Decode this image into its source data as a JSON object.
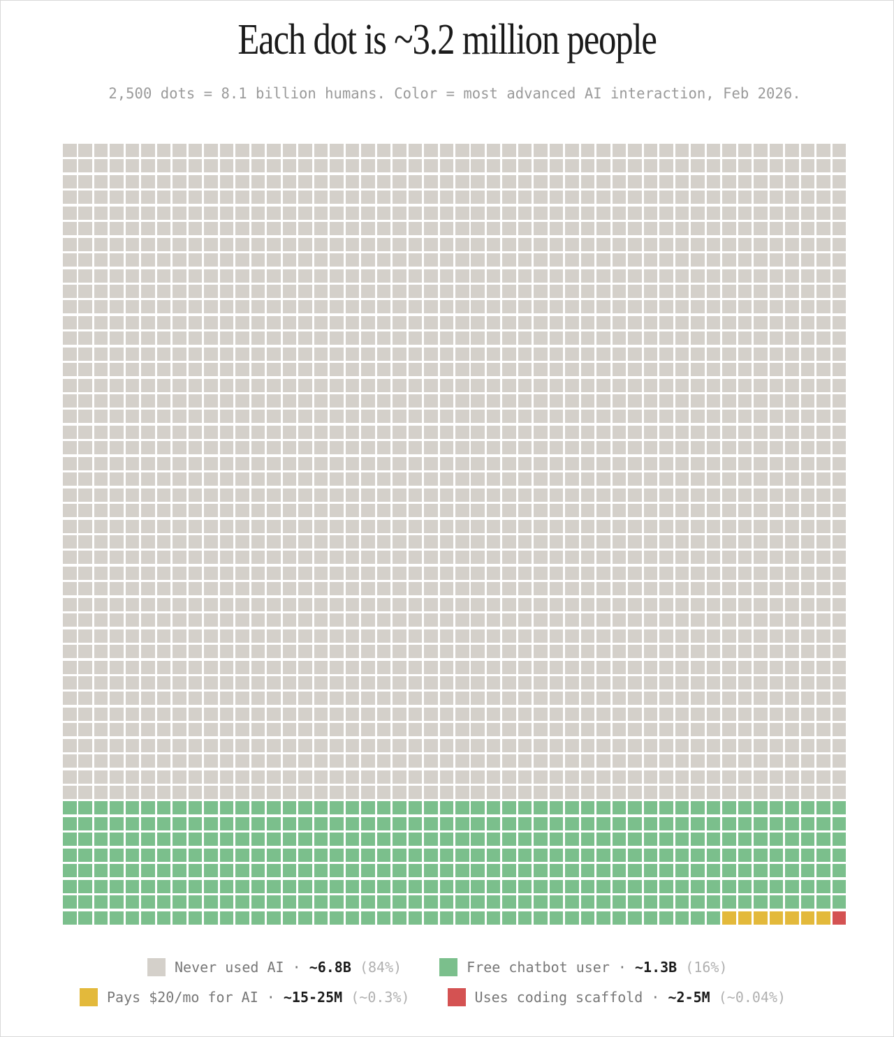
{
  "title": "Each dot is ~3.2 million people",
  "subtitle": "2,500 dots = 8.1 billion humans. Color = most advanced AI interaction, Feb 2026.",
  "chart_data": {
    "type": "waffle",
    "columns": 50,
    "rows": 50,
    "total_dots": 2500,
    "fill_order": "top-left to bottom-right, row by row",
    "categories": [
      {
        "name": "Never used AI",
        "dots": 2100,
        "value_label": "~6.8B",
        "pct_label": "(84%)",
        "color": "#d4d0ca"
      },
      {
        "name": "Free chatbot user",
        "dots": 392,
        "value_label": "~1.3B",
        "pct_label": "(16%)",
        "color": "#7bbf8c"
      },
      {
        "name": "Pays $20/mo for AI",
        "dots": 7,
        "value_label": "~15-25M",
        "pct_label": "(~0.3%)",
        "color": "#e3b93b"
      },
      {
        "name": "Uses coding scaffold",
        "dots": 1,
        "value_label": "~2-5M",
        "pct_label": "(~0.04%)",
        "color": "#d45252"
      }
    ]
  },
  "legend": {
    "separator": "·"
  }
}
